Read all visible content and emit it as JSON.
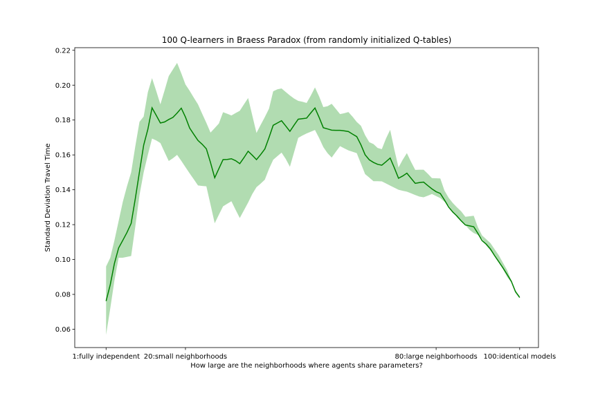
{
  "chart_data": {
    "type": "line",
    "title": "100 Q-learners in Braess Paradox (from randomly initialized Q-tables)",
    "xlabel": "How large are the neighborhoods where agents share parameters?",
    "ylabel": "Standard Deviation Travel Time",
    "xlim": [
      -6.5,
      104.5
    ],
    "ylim": [
      0.0495,
      0.2215
    ],
    "x_ticks": [
      {
        "value": 1,
        "label": "1:fully independent"
      },
      {
        "value": 20,
        "label": "20:small neighborhoods"
      },
      {
        "value": 80,
        "label": "80:large neighborhoods"
      },
      {
        "value": 100,
        "label": "100:identical models"
      }
    ],
    "y_ticks": [
      {
        "value": 0.06,
        "label": "0.06"
      },
      {
        "value": 0.08,
        "label": "0.08"
      },
      {
        "value": 0.1,
        "label": "0.10"
      },
      {
        "value": 0.12,
        "label": "0.12"
      },
      {
        "value": 0.14,
        "label": "0.14"
      },
      {
        "value": 0.16,
        "label": "0.16"
      },
      {
        "value": 0.18,
        "label": "0.18"
      },
      {
        "value": 0.2,
        "label": "0.20"
      },
      {
        "value": 0.22,
        "label": "0.22"
      }
    ],
    "grid": false,
    "legend": "none",
    "line_color": "#008000",
    "band_color": "#2ca02c",
    "band_opacity": 0.37,
    "series": [
      {
        "x": [
          1,
          2,
          3,
          4,
          5,
          6,
          7,
          8,
          9,
          10,
          11,
          12,
          13,
          14,
          15,
          16,
          17,
          18,
          19,
          20,
          21,
          22,
          23,
          24,
          25,
          26,
          27,
          28,
          29,
          30,
          31,
          32,
          33,
          34,
          35,
          36,
          37,
          38,
          39,
          40,
          41,
          42,
          43,
          44,
          45,
          46,
          47,
          48,
          49,
          50,
          51,
          52,
          53,
          54,
          55,
          56,
          57,
          58,
          59,
          60,
          61,
          62,
          63,
          64,
          65,
          66,
          67,
          68,
          69,
          70,
          71,
          72,
          73,
          74,
          75,
          76,
          77,
          78,
          79,
          80,
          81,
          82,
          83,
          84,
          85,
          86,
          87,
          88,
          89,
          90,
          91,
          92,
          93,
          94,
          95,
          96,
          97,
          98,
          99,
          100
        ],
        "mean": [
          0.0762,
          0.0856,
          0.0978,
          0.1066,
          0.111,
          0.1155,
          0.1207,
          0.135,
          0.1504,
          0.1656,
          0.1747,
          0.187,
          0.1827,
          0.1783,
          0.1789,
          0.1803,
          0.1815,
          0.184,
          0.1868,
          0.1817,
          0.1754,
          0.1718,
          0.1683,
          0.1661,
          0.1635,
          0.1556,
          0.1469,
          0.1521,
          0.1573,
          0.1574,
          0.1578,
          0.1567,
          0.155,
          0.1584,
          0.1621,
          0.1598,
          0.1573,
          0.1602,
          0.1634,
          0.17,
          0.177,
          0.1783,
          0.1796,
          0.1766,
          0.1735,
          0.1771,
          0.1805,
          0.1808,
          0.1811,
          0.1841,
          0.1869,
          0.1815,
          0.1756,
          0.1749,
          0.1742,
          0.1741,
          0.1741,
          0.1738,
          0.1734,
          0.1719,
          0.1705,
          0.1658,
          0.1601,
          0.1572,
          0.1557,
          0.1546,
          0.1541,
          0.1561,
          0.1582,
          0.1526,
          0.1466,
          0.1479,
          0.1495,
          0.1466,
          0.1437,
          0.1441,
          0.1444,
          0.1424,
          0.1405,
          0.1389,
          0.1379,
          0.1341,
          0.1301,
          0.1272,
          0.1249,
          0.1222,
          0.1198,
          0.1193,
          0.1188,
          0.115,
          0.1108,
          0.1088,
          0.106,
          0.1022,
          0.0987,
          0.0952,
          0.0914,
          0.0875,
          0.0815,
          0.0782
        ],
        "lower": [
          0.0568,
          0.072,
          0.088,
          0.101,
          0.101,
          0.1015,
          0.102,
          0.119,
          0.137,
          0.15,
          0.16,
          0.1694,
          0.1683,
          0.1668,
          0.1616,
          0.1565,
          0.1581,
          0.16,
          0.1566,
          0.153,
          0.1494,
          0.146,
          0.1425,
          0.1422,
          0.142,
          0.1315,
          0.1208,
          0.1257,
          0.1305,
          0.132,
          0.1334,
          0.1285,
          0.1238,
          0.1282,
          0.1327,
          0.1376,
          0.1415,
          0.1435,
          0.1458,
          0.152,
          0.1572,
          0.1593,
          0.1613,
          0.1577,
          0.1532,
          0.1615,
          0.1698,
          0.1711,
          0.1723,
          0.1733,
          0.1743,
          0.1697,
          0.1645,
          0.161,
          0.1585,
          0.1618,
          0.165,
          0.1638,
          0.1626,
          0.1618,
          0.161,
          0.155,
          0.149,
          0.147,
          0.1449,
          0.1449,
          0.1448,
          0.1436,
          0.1424,
          0.1412,
          0.14,
          0.1394,
          0.1389,
          0.138,
          0.137,
          0.1361,
          0.1357,
          0.1366,
          0.1376,
          0.1364,
          0.1352,
          0.1331,
          0.131,
          0.1275,
          0.1241,
          0.1219,
          0.1198,
          0.117,
          0.1152,
          0.1141,
          0.1118,
          0.108,
          0.1052,
          0.1021,
          0.0985,
          0.0945,
          0.09,
          0.0868,
          0.0811,
          0.0778
        ],
        "upper": [
          0.096,
          0.101,
          0.111,
          0.122,
          0.133,
          0.142,
          0.15,
          0.165,
          0.179,
          0.182,
          0.196,
          0.204,
          0.1967,
          0.189,
          0.197,
          0.2052,
          0.209,
          0.2128,
          0.2068,
          0.2004,
          0.1968,
          0.1928,
          0.189,
          0.1836,
          0.1784,
          0.1728,
          0.1754,
          0.178,
          0.1845,
          0.1836,
          0.1826,
          0.184,
          0.1853,
          0.189,
          0.1926,
          0.1826,
          0.1726,
          0.1772,
          0.1817,
          0.1865,
          0.1965,
          0.1976,
          0.1981,
          0.1961,
          0.1941,
          0.1923,
          0.191,
          0.1905,
          0.1898,
          0.194,
          0.1987,
          0.1935,
          0.1874,
          0.1879,
          0.1893,
          0.1864,
          0.1834,
          0.1839,
          0.1846,
          0.1819,
          0.1789,
          0.1767,
          0.1713,
          0.1673,
          0.1662,
          0.164,
          0.1633,
          0.1694,
          0.1744,
          0.163,
          0.1528,
          0.1572,
          0.161,
          0.156,
          0.1514,
          0.1515,
          0.1515,
          0.1492,
          0.1467,
          0.1466,
          0.1465,
          0.1395,
          0.1354,
          0.1324,
          0.1299,
          0.1276,
          0.1245,
          0.1248,
          0.1251,
          0.1185,
          0.1138,
          0.1116,
          0.1094,
          0.1059,
          0.1024,
          0.0981,
          0.0939,
          0.088,
          0.0824,
          0.079
        ]
      }
    ]
  }
}
